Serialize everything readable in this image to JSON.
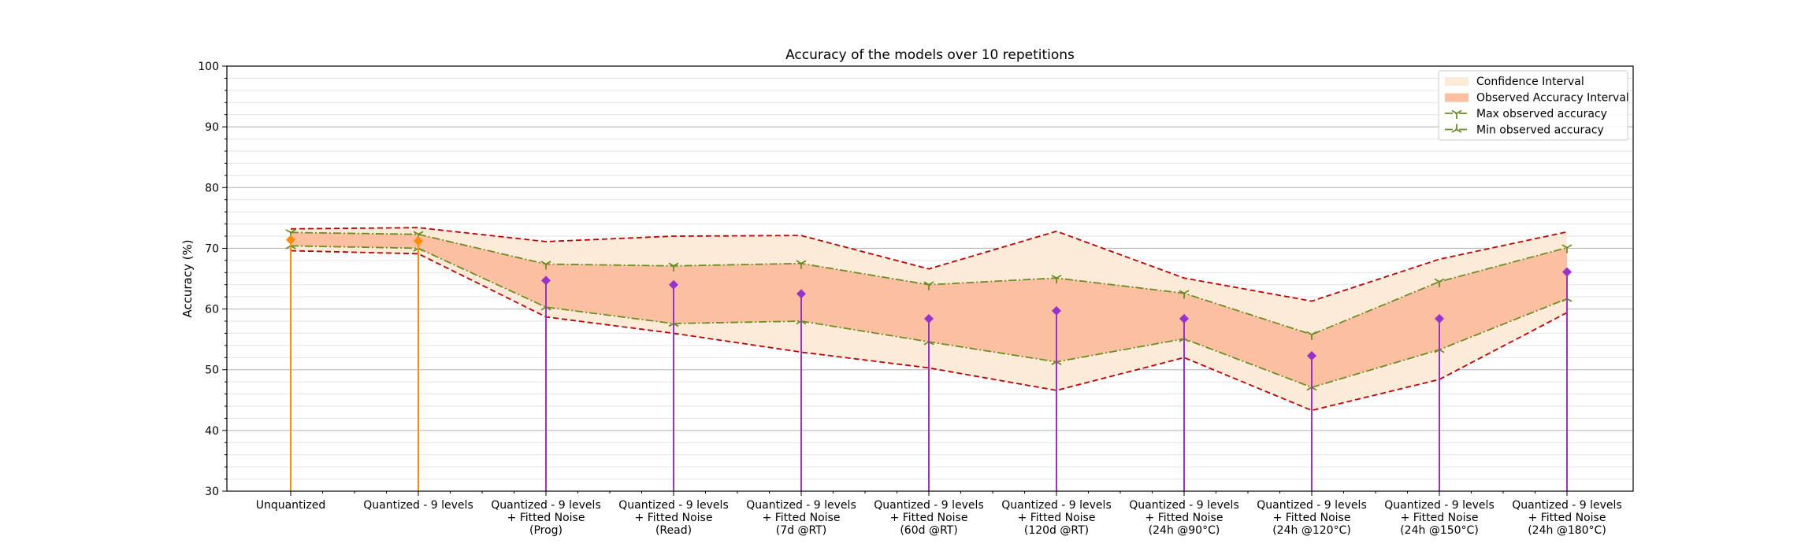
{
  "chart_data": {
    "type": "line",
    "title": "Accuracy of the models over 10 repetitions",
    "xlabel": "",
    "ylabel": "Accuracy (%)",
    "ylim": [
      30,
      100
    ],
    "yticks": [
      30,
      40,
      50,
      60,
      70,
      80,
      90,
      100
    ],
    "grid": "horizontal",
    "legend_position": "top-right",
    "categories": [
      [
        "Unquantized"
      ],
      [
        "Quantized - 9 levels"
      ],
      [
        "Quantized - 9 levels",
        "+ Fitted Noise",
        "(Prog)"
      ],
      [
        "Quantized - 9 levels",
        "+ Fitted Noise",
        "(Read)"
      ],
      [
        "Quantized - 9 levels",
        "+ Fitted Noise",
        "(7d @RT)"
      ],
      [
        "Quantized - 9 levels",
        "+ Fitted Noise",
        "(60d @RT)"
      ],
      [
        "Quantized - 9 levels",
        "+ Fitted Noise",
        "(120d @RT)"
      ],
      [
        "Quantized - 9 levels",
        "+ Fitted Noise",
        "(24h @90°C)"
      ],
      [
        "Quantized - 9 levels",
        "+ Fitted Noise",
        "(24h @120°C)"
      ],
      [
        "Quantized - 9 levels",
        "+ Fitted Noise",
        "(24h @150°C)"
      ],
      [
        "Quantized - 9 levels",
        "+ Fitted Noise",
        "(24h @180°C)"
      ]
    ],
    "legend": [
      {
        "label": "Confidence Interval",
        "kind": "fill",
        "color": "#fdebd9"
      },
      {
        "label": "Observed Accuracy Interval",
        "kind": "fill",
        "color": "#fbbfa1"
      },
      {
        "label": "Max observed accuracy",
        "kind": "line",
        "color": "#6b8e23",
        "marker": "tri_down"
      },
      {
        "label": "Min observed accuracy",
        "kind": "line",
        "color": "#6b8e23",
        "marker": "tri_up"
      }
    ],
    "series": [
      {
        "name": "Confidence Interval",
        "kind": "band",
        "color": "#fdebd9",
        "edge_color": "#c00000",
        "upper": [
          73.2,
          73.4,
          71.1,
          72.0,
          72.1,
          66.6,
          72.8,
          65.1,
          61.3,
          68.2,
          72.7
        ],
        "lower": [
          69.6,
          69.1,
          58.7,
          56.0,
          52.9,
          50.3,
          46.6,
          52.0,
          43.3,
          48.4,
          59.4
        ]
      },
      {
        "name": "Observed Accuracy Interval",
        "kind": "band",
        "color": "#fbbfa1",
        "upper": [
          72.6,
          72.3,
          67.4,
          67.1,
          67.5,
          64.0,
          65.1,
          62.6,
          55.8,
          64.5,
          70.1
        ],
        "lower": [
          70.4,
          70.0,
          60.3,
          57.6,
          58.0,
          54.6,
          51.3,
          55.1,
          47.1,
          53.3,
          61.7
        ]
      },
      {
        "name": "Max observed accuracy",
        "kind": "line",
        "color": "#6b8e23",
        "values": [
          72.6,
          72.3,
          67.4,
          67.1,
          67.5,
          64.0,
          65.1,
          62.6,
          55.8,
          64.5,
          70.1
        ]
      },
      {
        "name": "Min observed accuracy",
        "kind": "line",
        "color": "#6b8e23",
        "values": [
          70.4,
          70.0,
          60.3,
          57.6,
          58.0,
          54.6,
          51.3,
          55.1,
          47.1,
          53.3,
          61.7
        ]
      },
      {
        "kind": "stem",
        "colors": [
          "#ff8c00",
          "#ff8c00",
          "#9932cc",
          "#9932cc",
          "#9932cc",
          "#9932cc",
          "#9932cc",
          "#9932cc",
          "#9932cc",
          "#9932cc",
          "#9932cc"
        ],
        "values": [
          71.4,
          71.2,
          64.7,
          64.0,
          62.5,
          58.4,
          59.7,
          58.4,
          52.3,
          58.4,
          66.1
        ]
      }
    ]
  }
}
